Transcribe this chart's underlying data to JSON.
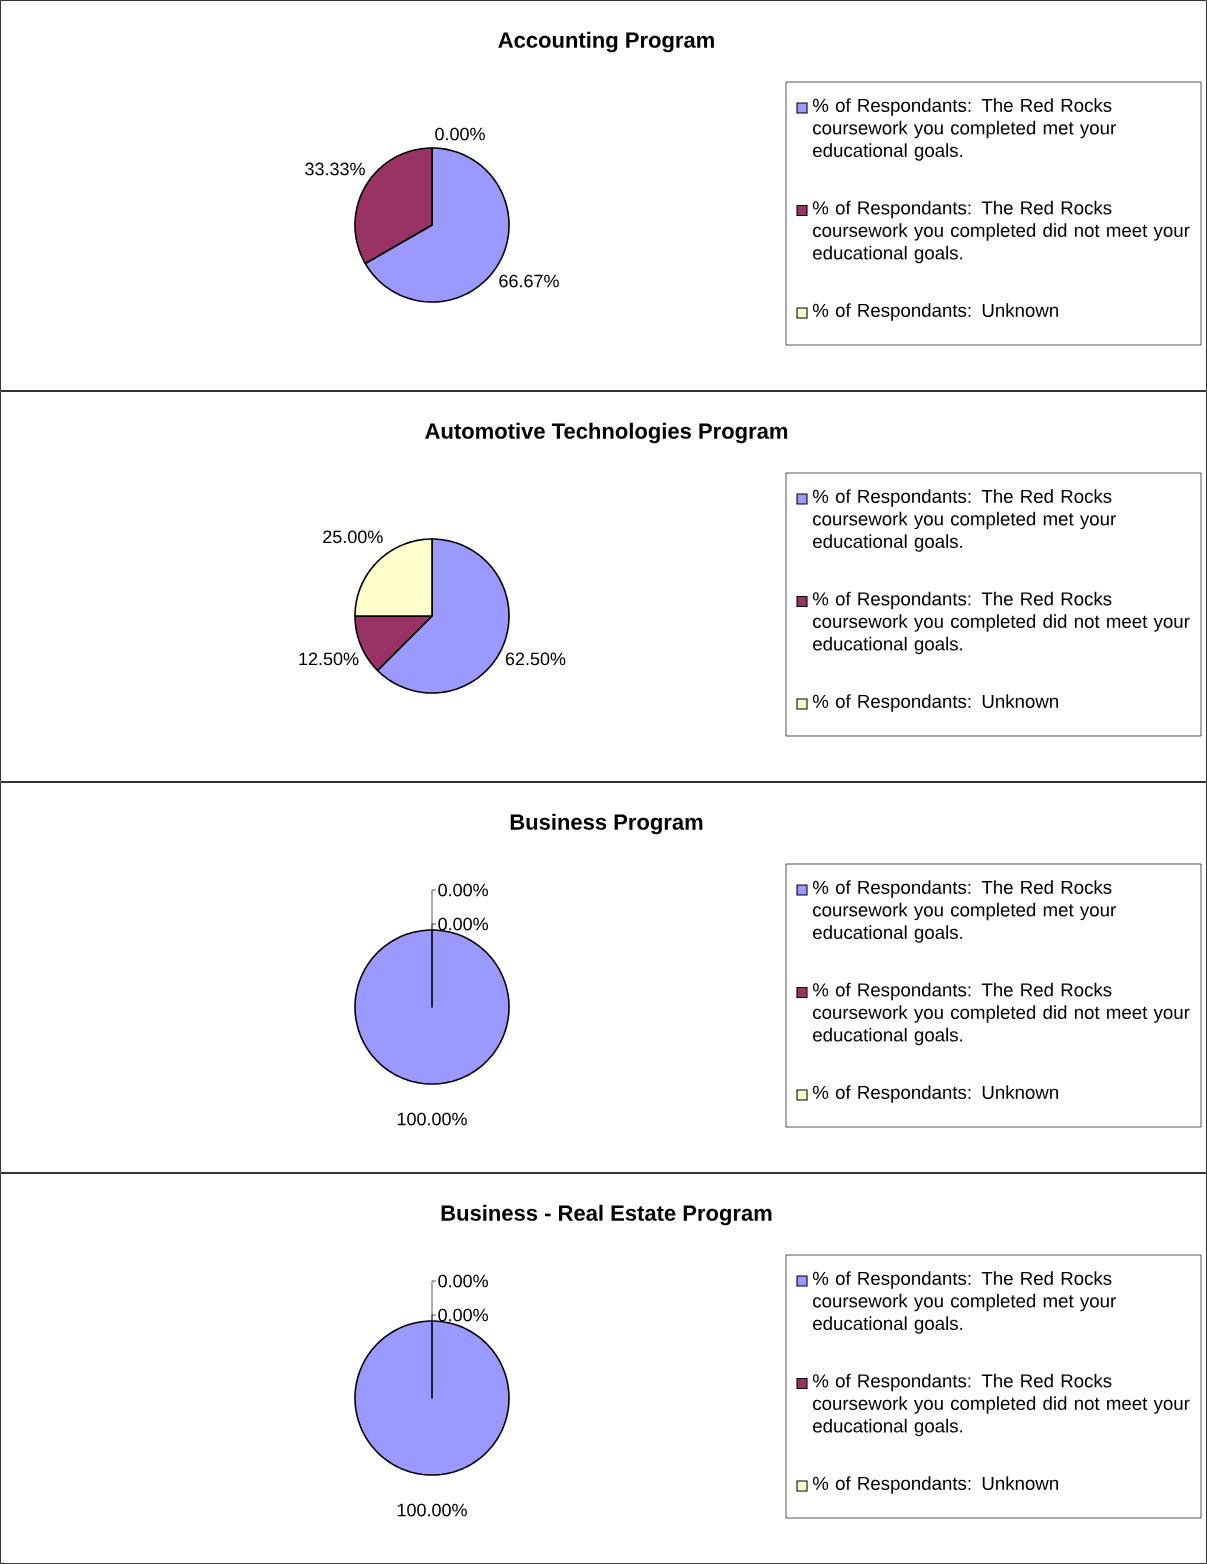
{
  "chart_data": [
    {
      "type": "pie",
      "title": "Accounting Program",
      "categories": [
        "% of Respondants: The Red Rocks coursework you completed met your educational goals.",
        "% of Respondants:  The Red Rocks coursework you completed did not meet your educational goals.",
        "% of Respondants:  Unknown"
      ],
      "values": [
        66.67,
        33.33,
        0
      ],
      "value_labels": [
        "66.67%",
        "33.33%",
        "0.00%"
      ],
      "colors": [
        "#9999ff",
        "#993366",
        "#ffffcc"
      ],
      "legend": "right"
    },
    {
      "type": "pie",
      "title": "Automotive Technologies Program",
      "categories": [
        "% of Respondants: The Red Rocks coursework you completed met your educational goals.",
        "% of Respondants:  The Red Rocks coursework you completed did not meet your educational goals.",
        "% of Respondants:  Unknown"
      ],
      "values": [
        62.5,
        12.5,
        25
      ],
      "value_labels": [
        "62.50%",
        "12.50%",
        "25.00%"
      ],
      "colors": [
        "#9999ff",
        "#993366",
        "#ffffcc"
      ],
      "legend": "right"
    },
    {
      "type": "pie",
      "title": "Business Program",
      "categories": [
        "% of Respondants: The Red Rocks coursework you completed met your educational goals.",
        "% of Respondants:  The Red Rocks coursework you completed did not meet your educational goals.",
        "% of Respondants:  Unknown"
      ],
      "values": [
        100,
        0,
        0
      ],
      "value_labels": [
        "100.00%",
        "0.00%",
        "0.00%"
      ],
      "colors": [
        "#9999ff",
        "#993366",
        "#ffffcc"
      ],
      "legend": "right"
    },
    {
      "type": "pie",
      "title": "Business - Real Estate Program",
      "categories": [
        "% of Respondants: The Red Rocks coursework you completed met your educational goals.",
        "% of Respondants:  The Red Rocks coursework you completed did not meet your educational goals.",
        "% of Respondants:  Unknown"
      ],
      "values": [
        100,
        0,
        0
      ],
      "value_labels": [
        "100.00%",
        "0.00%",
        "0.00%"
      ],
      "colors": [
        "#9999ff",
        "#993366",
        "#ffffcc"
      ],
      "legend": "right"
    }
  ]
}
